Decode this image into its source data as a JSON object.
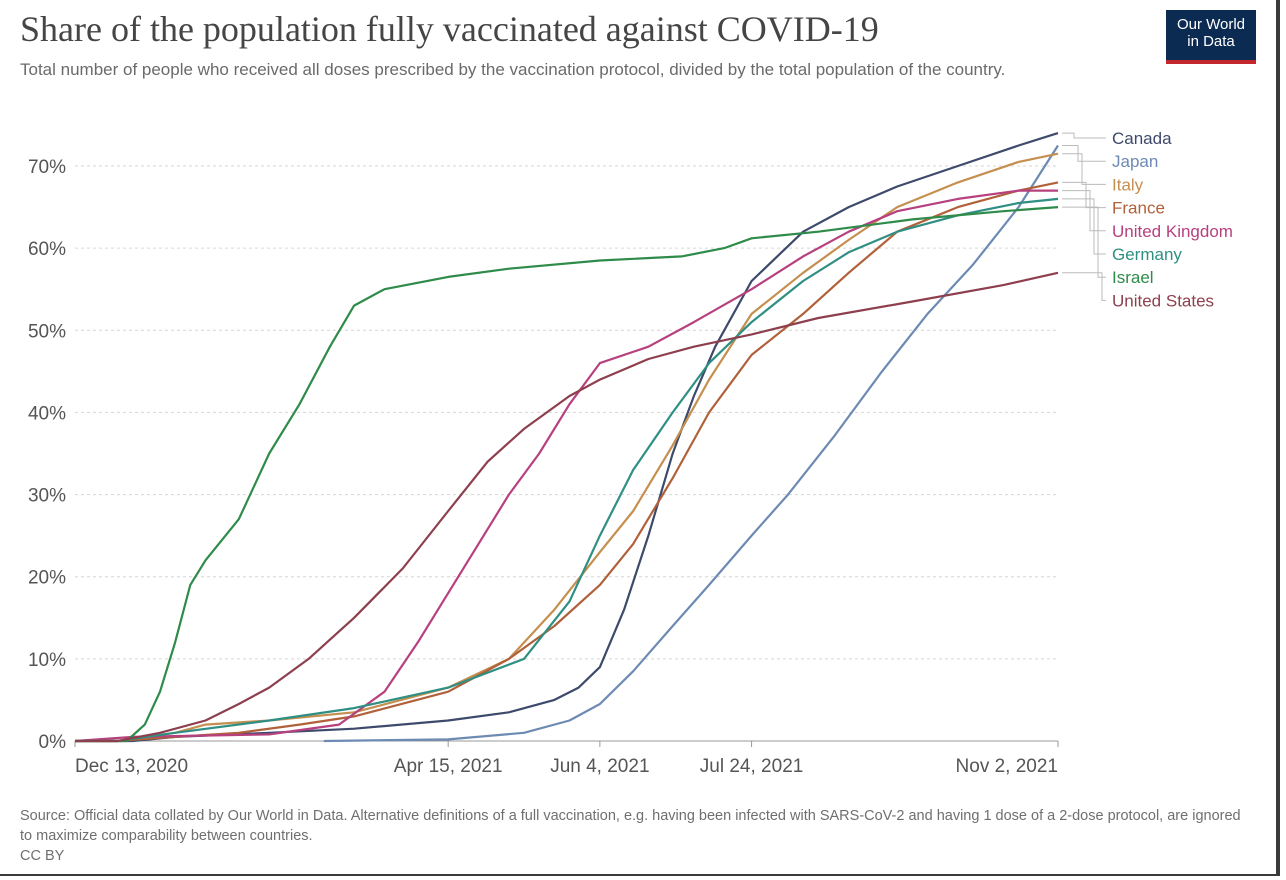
{
  "header": {
    "title": "Share of the population fully vaccinated against COVID-19",
    "subtitle": "Total number of people who received all doses prescribed by the vaccination protocol, divided by the total population of the country."
  },
  "logo": {
    "line1": "Our World",
    "line2": "in Data",
    "bg": "#0c2b52",
    "accent": "#c2272d"
  },
  "footer": {
    "source": "Source: Official data collated by Our World in Data. Alternative definitions of a full vaccination, e.g. having been infected with SARS-CoV-2 and having 1 dose of a 2-dose protocol, are ignored to maximize comparability between countries.",
    "license": "CC BY"
  },
  "chart_data": {
    "type": "line",
    "title": "Share of the population fully vaccinated against COVID-19",
    "x_range": [
      "2020-12-13",
      "2021-11-02"
    ],
    "x_ticks": [
      {
        "date": "2020-12-13",
        "label": "Dec 13, 2020"
      },
      {
        "date": "2021-04-15",
        "label": "Apr 15, 2021"
      },
      {
        "date": "2021-06-04",
        "label": "Jun 4, 2021"
      },
      {
        "date": "2021-07-24",
        "label": "Jul 24, 2021"
      },
      {
        "date": "2021-11-02",
        "label": "Nov 2, 2021"
      }
    ],
    "y_range": [
      0,
      70
    ],
    "y_ticks": [
      0,
      10,
      20,
      30,
      40,
      50,
      60,
      70
    ],
    "y_unit": "%",
    "grid": "horizontal dashed",
    "legend": "right",
    "series": [
      {
        "name": "Canada",
        "color": "#3d4a6b",
        "points": [
          [
            "2020-12-13",
            0
          ],
          [
            "2021-01-01",
            0
          ],
          [
            "2021-01-15",
            0.5
          ],
          [
            "2021-02-15",
            1
          ],
          [
            "2021-03-15",
            1.5
          ],
          [
            "2021-04-15",
            2.5
          ],
          [
            "2021-05-05",
            3.5
          ],
          [
            "2021-05-20",
            5
          ],
          [
            "2021-05-28",
            6.5
          ],
          [
            "2021-06-04",
            9
          ],
          [
            "2021-06-12",
            16
          ],
          [
            "2021-06-20",
            25
          ],
          [
            "2021-06-28",
            35
          ],
          [
            "2021-07-05",
            42
          ],
          [
            "2021-07-12",
            48
          ],
          [
            "2021-07-24",
            56
          ],
          [
            "2021-08-10",
            62
          ],
          [
            "2021-08-25",
            65
          ],
          [
            "2021-09-10",
            67.5
          ],
          [
            "2021-09-30",
            70
          ],
          [
            "2021-10-20",
            72.5
          ],
          [
            "2021-11-02",
            74
          ]
        ]
      },
      {
        "name": "Japan",
        "color": "#6d8ab3",
        "points": [
          [
            "2021-03-05",
            0
          ],
          [
            "2021-04-15",
            0.2
          ],
          [
            "2021-05-10",
            1
          ],
          [
            "2021-05-25",
            2.5
          ],
          [
            "2021-06-04",
            4.5
          ],
          [
            "2021-06-15",
            8.5
          ],
          [
            "2021-06-28",
            14
          ],
          [
            "2021-07-10",
            19
          ],
          [
            "2021-07-24",
            25
          ],
          [
            "2021-08-05",
            30
          ],
          [
            "2021-08-20",
            37
          ],
          [
            "2021-09-05",
            45
          ],
          [
            "2021-09-20",
            52
          ],
          [
            "2021-10-05",
            58
          ],
          [
            "2021-10-20",
            65
          ],
          [
            "2021-11-02",
            72.5
          ]
        ]
      },
      {
        "name": "Italy",
        "color": "#c58f4f",
        "points": [
          [
            "2020-12-13",
            0
          ],
          [
            "2020-12-27",
            0
          ],
          [
            "2021-01-15",
            1
          ],
          [
            "2021-01-25",
            2
          ],
          [
            "2021-02-15",
            2.5
          ],
          [
            "2021-03-15",
            3.5
          ],
          [
            "2021-04-15",
            6.5
          ],
          [
            "2021-05-05",
            10
          ],
          [
            "2021-05-20",
            16
          ],
          [
            "2021-06-04",
            23
          ],
          [
            "2021-06-15",
            28
          ],
          [
            "2021-06-28",
            36
          ],
          [
            "2021-07-10",
            44
          ],
          [
            "2021-07-24",
            52
          ],
          [
            "2021-08-10",
            57
          ],
          [
            "2021-08-25",
            61
          ],
          [
            "2021-09-10",
            65
          ],
          [
            "2021-09-30",
            68
          ],
          [
            "2021-10-20",
            70.5
          ],
          [
            "2021-11-02",
            71.5
          ]
        ]
      },
      {
        "name": "France",
        "color": "#b0613a",
        "points": [
          [
            "2020-12-13",
            0
          ],
          [
            "2020-12-27",
            0
          ],
          [
            "2021-01-15",
            0.5
          ],
          [
            "2021-02-05",
            1
          ],
          [
            "2021-02-25",
            2
          ],
          [
            "2021-03-15",
            3
          ],
          [
            "2021-04-15",
            6
          ],
          [
            "2021-05-05",
            10
          ],
          [
            "2021-05-20",
            14
          ],
          [
            "2021-06-04",
            19
          ],
          [
            "2021-06-15",
            24
          ],
          [
            "2021-06-28",
            32
          ],
          [
            "2021-07-10",
            40
          ],
          [
            "2021-07-24",
            47
          ],
          [
            "2021-08-10",
            52
          ],
          [
            "2021-08-25",
            57
          ],
          [
            "2021-09-10",
            62
          ],
          [
            "2021-09-30",
            65
          ],
          [
            "2021-10-20",
            67
          ],
          [
            "2021-11-02",
            68
          ]
        ]
      },
      {
        "name": "United Kingdom",
        "color": "#b7407f",
        "points": [
          [
            "2020-12-13",
            0
          ],
          [
            "2021-01-01",
            0.5
          ],
          [
            "2021-02-15",
            0.8
          ],
          [
            "2021-03-10",
            2
          ],
          [
            "2021-03-25",
            6
          ],
          [
            "2021-04-05",
            12
          ],
          [
            "2021-04-15",
            18
          ],
          [
            "2021-04-25",
            24
          ],
          [
            "2021-05-05",
            30
          ],
          [
            "2021-05-15",
            35
          ],
          [
            "2021-05-25",
            41
          ],
          [
            "2021-06-04",
            46
          ],
          [
            "2021-06-20",
            48
          ],
          [
            "2021-07-05",
            51
          ],
          [
            "2021-07-24",
            55
          ],
          [
            "2021-08-10",
            59
          ],
          [
            "2021-08-25",
            62
          ],
          [
            "2021-09-10",
            64.5
          ],
          [
            "2021-09-30",
            66
          ],
          [
            "2021-10-20",
            67
          ],
          [
            "2021-11-02",
            67
          ]
        ]
      },
      {
        "name": "Germany",
        "color": "#2f8f83",
        "points": [
          [
            "2020-12-13",
            0
          ],
          [
            "2020-12-27",
            0
          ],
          [
            "2021-01-15",
            1
          ],
          [
            "2021-02-15",
            2.5
          ],
          [
            "2021-03-15",
            4
          ],
          [
            "2021-04-15",
            6.5
          ],
          [
            "2021-05-10",
            10
          ],
          [
            "2021-05-25",
            17
          ],
          [
            "2021-06-04",
            25
          ],
          [
            "2021-06-15",
            33
          ],
          [
            "2021-06-28",
            40
          ],
          [
            "2021-07-10",
            46
          ],
          [
            "2021-07-24",
            51
          ],
          [
            "2021-08-10",
            56
          ],
          [
            "2021-08-25",
            59.5
          ],
          [
            "2021-09-10",
            62
          ],
          [
            "2021-09-30",
            64
          ],
          [
            "2021-10-20",
            65.5
          ],
          [
            "2021-11-02",
            66
          ]
        ]
      },
      {
        "name": "Israel",
        "color": "#2e8b4a",
        "points": [
          [
            "2020-12-13",
            0
          ],
          [
            "2020-12-30",
            0
          ],
          [
            "2021-01-05",
            2
          ],
          [
            "2021-01-10",
            6
          ],
          [
            "2021-01-15",
            12
          ],
          [
            "2021-01-20",
            19
          ],
          [
            "2021-01-25",
            22
          ],
          [
            "2021-02-05",
            27
          ],
          [
            "2021-02-15",
            35
          ],
          [
            "2021-02-25",
            41
          ],
          [
            "2021-03-07",
            48
          ],
          [
            "2021-03-15",
            53
          ],
          [
            "2021-03-25",
            55
          ],
          [
            "2021-04-15",
            56.5
          ],
          [
            "2021-05-05",
            57.5
          ],
          [
            "2021-06-04",
            58.5
          ],
          [
            "2021-07-01",
            59
          ],
          [
            "2021-07-15",
            60
          ],
          [
            "2021-07-24",
            61.2
          ],
          [
            "2021-08-15",
            62
          ],
          [
            "2021-09-15",
            63.5
          ],
          [
            "2021-10-15",
            64.5
          ],
          [
            "2021-11-02",
            65
          ]
        ]
      },
      {
        "name": "United States",
        "color": "#8d3f4e",
        "points": [
          [
            "2020-12-13",
            0
          ],
          [
            "2020-12-27",
            0
          ],
          [
            "2021-01-10",
            1
          ],
          [
            "2021-01-25",
            2.5
          ],
          [
            "2021-02-05",
            4.5
          ],
          [
            "2021-02-15",
            6.5
          ],
          [
            "2021-02-28",
            10
          ],
          [
            "2021-03-15",
            15
          ],
          [
            "2021-03-31",
            21
          ],
          [
            "2021-04-15",
            28
          ],
          [
            "2021-04-28",
            34
          ],
          [
            "2021-05-10",
            38
          ],
          [
            "2021-05-25",
            42
          ],
          [
            "2021-06-04",
            44
          ],
          [
            "2021-06-20",
            46.5
          ],
          [
            "2021-07-05",
            48
          ],
          [
            "2021-07-24",
            49.5
          ],
          [
            "2021-08-15",
            51.5
          ],
          [
            "2021-09-15",
            53.5
          ],
          [
            "2021-10-15",
            55.5
          ],
          [
            "2021-11-02",
            57
          ]
        ]
      }
    ]
  }
}
